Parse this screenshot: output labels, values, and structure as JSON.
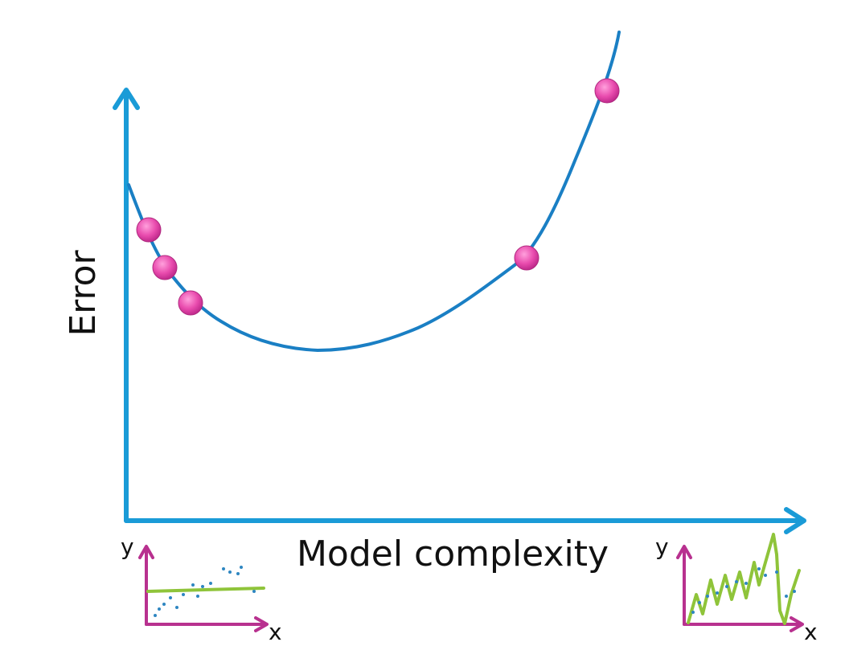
{
  "labels": {
    "y_axis": "Error",
    "x_axis": "Model complexity",
    "left_inset_y": "y",
    "left_inset_x": "x",
    "right_inset_y": "y",
    "right_inset_x": "x"
  },
  "colors": {
    "axis": "#1a9bd7",
    "curve": "#1a7fc4",
    "points": "#e94cae",
    "inset_axis": "#b8318f",
    "inset_fit": "#8fc43a",
    "inset_dots": "#2e86c1"
  },
  "error_curve": {
    "shape": "u-shaped",
    "points_count": 5
  }
}
